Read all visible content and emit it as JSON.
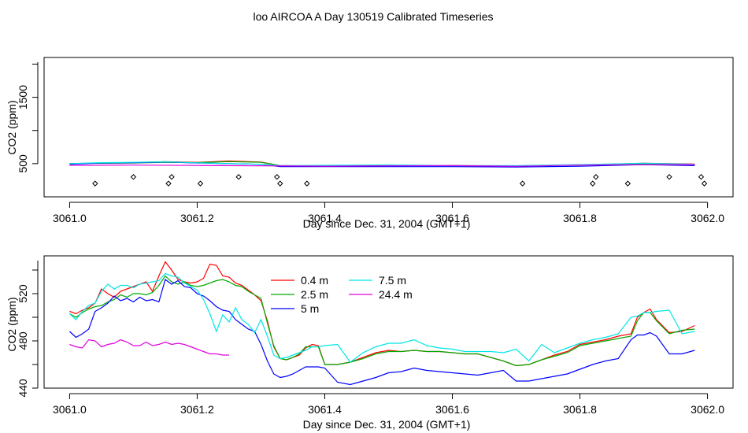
{
  "title": "loo AIRCOA A  Day 130519  Calibrated Timeseries",
  "chart_data": [
    {
      "type": "line",
      "xlabel": "Day since Dec. 31, 2004 (GMT+1)",
      "ylabel": "CO2 (ppm)",
      "xlim": [
        3060.96,
        3062.04
      ],
      "ylim": [
        0,
        2100
      ],
      "xticks": [
        3061.0,
        3061.2,
        3061.4,
        3061.6,
        3061.8,
        3062.0
      ],
      "xtick_labels": [
        "3061.0",
        "3061.2",
        "3061.4",
        "3061.6",
        "3061.8",
        "3062.0"
      ],
      "yticks": [
        500,
        1500
      ],
      "ytick_labels": [
        "500",
        "1500"
      ],
      "series": [
        {
          "color": "#ff0000",
          "x": [
            3061.0,
            3061.05,
            3061.1,
            3061.15,
            3061.2,
            3061.25,
            3061.3,
            3061.33,
            3061.4,
            3061.5,
            3061.6,
            3061.7,
            3061.8,
            3061.9,
            3061.98
          ],
          "y": [
            500,
            510,
            515,
            530,
            520,
            540,
            525,
            470,
            460,
            470,
            470,
            465,
            480,
            505,
            495
          ]
        },
        {
          "color": "#00aa00",
          "x": [
            3061.0,
            3061.05,
            3061.1,
            3061.15,
            3061.2,
            3061.25,
            3061.3,
            3061.33,
            3061.4,
            3061.5,
            3061.6,
            3061.7,
            3061.8,
            3061.9,
            3061.98
          ],
          "y": [
            500,
            505,
            510,
            520,
            515,
            530,
            520,
            470,
            460,
            470,
            470,
            465,
            480,
            500,
            490
          ]
        },
        {
          "color": "#0000ff",
          "x": [
            3061.0,
            3061.05,
            3061.1,
            3061.15,
            3061.2,
            3061.25,
            3061.3,
            3061.33,
            3061.4,
            3061.5,
            3061.6,
            3061.7,
            3061.8,
            3061.9,
            3061.98
          ],
          "y": [
            490,
            510,
            515,
            525,
            510,
            500,
            490,
            455,
            455,
            455,
            455,
            450,
            460,
            485,
            470
          ]
        },
        {
          "color": "#00e5e5",
          "x": [
            3061.0,
            3061.05,
            3061.1,
            3061.15,
            3061.2,
            3061.25,
            3061.3,
            3061.33,
            3061.4,
            3061.5,
            3061.6,
            3061.7,
            3061.8,
            3061.9,
            3061.98
          ],
          "y": [
            500,
            515,
            520,
            528,
            512,
            500,
            490,
            470,
            475,
            480,
            470,
            470,
            485,
            505,
            490
          ]
        },
        {
          "color": "#e000e0",
          "x": [
            3061.0,
            3061.1,
            3061.2,
            3061.3,
            3061.4,
            3061.5,
            3061.6,
            3061.7,
            3061.8,
            3061.9,
            3061.98
          ],
          "y": [
            475,
            478,
            472,
            468,
            462,
            468,
            470,
            460,
            478,
            485,
            485
          ]
        }
      ],
      "points": {
        "x": [
          3061.04,
          3061.1,
          3061.155,
          3061.16,
          3061.205,
          3061.265,
          3061.325,
          3061.33,
          3061.372,
          3061.71,
          3061.82,
          3061.825,
          3061.875,
          3061.94,
          3061.99,
          3061.995
        ],
        "y": [
          200,
          300,
          200,
          300,
          200,
          300,
          300,
          200,
          200,
          200,
          200,
          300,
          200,
          300,
          300,
          200
        ]
      }
    },
    {
      "type": "line",
      "xlabel": "Day since Dec. 31, 2004 (GMT+1)",
      "ylabel": "CO2 (ppm)",
      "xlim": [
        3060.96,
        3062.04
      ],
      "ylim": [
        440,
        552
      ],
      "xticks": [
        3061.0,
        3061.2,
        3061.4,
        3061.6,
        3061.8,
        3062.0
      ],
      "xtick_labels": [
        "3061.0",
        "3061.2",
        "3061.4",
        "3061.6",
        "3061.8",
        "3062.0"
      ],
      "yticks": [
        440,
        480,
        520
      ],
      "ytick_labels": [
        "440",
        "480",
        "520"
      ],
      "legend_position": "top-center",
      "series": [
        {
          "name": "0.4 m",
          "color": "#ff0000",
          "x": [
            3061.0,
            3061.01,
            3061.02,
            3061.03,
            3061.04,
            3061.05,
            3061.06,
            3061.07,
            3061.08,
            3061.09,
            3061.1,
            3061.11,
            3061.12,
            3061.13,
            3061.14,
            3061.15,
            3061.16,
            3061.17,
            3061.18,
            3061.19,
            3061.2,
            3061.21,
            3061.22,
            3061.23,
            3061.24,
            3061.25,
            3061.26,
            3061.27,
            3061.28,
            3061.29,
            3061.3,
            3061.31,
            3061.32,
            3061.33,
            3061.34,
            3061.35,
            3061.36,
            3061.37,
            3061.38,
            3061.39,
            3061.4,
            3061.42,
            3061.44,
            3061.46,
            3061.48,
            3061.5,
            3061.52,
            3061.54,
            3061.56,
            3061.58,
            3061.6,
            3061.62,
            3061.64,
            3061.66,
            3061.68,
            3061.7,
            3061.72,
            3061.74,
            3061.76,
            3061.78,
            3061.8,
            3061.82,
            3061.84,
            3061.86,
            3061.88,
            3061.89,
            3061.9,
            3061.91,
            3061.92,
            3061.94,
            3061.96,
            3061.98
          ],
          "y": [
            505,
            503,
            506,
            508,
            512,
            524,
            520,
            517,
            522,
            524,
            526,
            528,
            530,
            522,
            535,
            547,
            540,
            532,
            530,
            529,
            530,
            533,
            545,
            544,
            535,
            534,
            529,
            527,
            523,
            519,
            514,
            497,
            475,
            465,
            464,
            466,
            468,
            474,
            477,
            476,
            460,
            460,
            462,
            466,
            470,
            472,
            471,
            472,
            471,
            471,
            470,
            469,
            469,
            466,
            463,
            459,
            460,
            464,
            468,
            471,
            477,
            479,
            481,
            484,
            486,
            500,
            504,
            507,
            498,
            487,
            488,
            493
          ]
        },
        {
          "name": "2.5 m",
          "color": "#00aa00",
          "x": [
            3061.0,
            3061.01,
            3061.02,
            3061.03,
            3061.04,
            3061.05,
            3061.06,
            3061.07,
            3061.08,
            3061.09,
            3061.1,
            3061.11,
            3061.12,
            3061.13,
            3061.14,
            3061.15,
            3061.16,
            3061.17,
            3061.18,
            3061.19,
            3061.2,
            3061.21,
            3061.22,
            3061.23,
            3061.24,
            3061.25,
            3061.26,
            3061.27,
            3061.28,
            3061.29,
            3061.3,
            3061.31,
            3061.32,
            3061.33,
            3061.34,
            3061.35,
            3061.36,
            3061.37,
            3061.38,
            3061.39,
            3061.4,
            3061.42,
            3061.44,
            3061.46,
            3061.48,
            3061.5,
            3061.52,
            3061.54,
            3061.56,
            3061.58,
            3061.6,
            3061.62,
            3061.64,
            3061.66,
            3061.68,
            3061.7,
            3061.72,
            3061.74,
            3061.76,
            3061.78,
            3061.8,
            3061.82,
            3061.84,
            3061.86,
            3061.88,
            3061.89,
            3061.9,
            3061.91,
            3061.92,
            3061.94,
            3061.96,
            3061.98
          ],
          "y": [
            503,
            500,
            504,
            507,
            509,
            510,
            513,
            515,
            519,
            517,
            520,
            520,
            519,
            521,
            527,
            535,
            530,
            528,
            530,
            527,
            526,
            527,
            529,
            531,
            532,
            530,
            527,
            526,
            522,
            519,
            516,
            495,
            476,
            465,
            464,
            466,
            469,
            475,
            475,
            475,
            460,
            460,
            462,
            465,
            469,
            471,
            471,
            472,
            471,
            471,
            470,
            469,
            469,
            466,
            463,
            459,
            460,
            464,
            467,
            470,
            476,
            478,
            480,
            482,
            484,
            497,
            504,
            504,
            497,
            486,
            489,
            490
          ]
        },
        {
          "name": "5 m",
          "color": "#0000ff",
          "x": [
            3061.0,
            3061.01,
            3061.02,
            3061.03,
            3061.04,
            3061.05,
            3061.06,
            3061.07,
            3061.08,
            3061.09,
            3061.1,
            3061.11,
            3061.12,
            3061.13,
            3061.14,
            3061.15,
            3061.16,
            3061.17,
            3061.18,
            3061.19,
            3061.2,
            3061.21,
            3061.22,
            3061.23,
            3061.24,
            3061.25,
            3061.26,
            3061.27,
            3061.28,
            3061.29,
            3061.3,
            3061.31,
            3061.32,
            3061.33,
            3061.34,
            3061.35,
            3061.36,
            3061.37,
            3061.38,
            3061.39,
            3061.4,
            3061.42,
            3061.44,
            3061.46,
            3061.48,
            3061.5,
            3061.52,
            3061.54,
            3061.56,
            3061.58,
            3061.6,
            3061.62,
            3061.64,
            3061.66,
            3061.68,
            3061.7,
            3061.72,
            3061.74,
            3061.76,
            3061.78,
            3061.8,
            3061.82,
            3061.84,
            3061.86,
            3061.88,
            3061.89,
            3061.9,
            3061.91,
            3061.92,
            3061.94,
            3061.96,
            3061.98
          ],
          "y": [
            488,
            483,
            486,
            490,
            505,
            508,
            512,
            518,
            514,
            516,
            513,
            517,
            514,
            515,
            513,
            532,
            528,
            531,
            526,
            525,
            520,
            518,
            514,
            509,
            506,
            505,
            498,
            494,
            490,
            488,
            477,
            463,
            452,
            449,
            450,
            452,
            455,
            458,
            458,
            458,
            457,
            445,
            443,
            446,
            449,
            453,
            454,
            457,
            455,
            454,
            453,
            452,
            451,
            453,
            455,
            446,
            446,
            448,
            450,
            452,
            456,
            460,
            463,
            465,
            481,
            485,
            485,
            487,
            484,
            469,
            469,
            472
          ]
        },
        {
          "name": "7.5 m",
          "color": "#00e5e5",
          "x": [
            3061.0,
            3061.01,
            3061.02,
            3061.03,
            3061.04,
            3061.05,
            3061.06,
            3061.07,
            3061.08,
            3061.09,
            3061.1,
            3061.11,
            3061.12,
            3061.13,
            3061.14,
            3061.15,
            3061.16,
            3061.17,
            3061.18,
            3061.19,
            3061.2,
            3061.21,
            3061.22,
            3061.23,
            3061.24,
            3061.25,
            3061.26,
            3061.27,
            3061.28,
            3061.29,
            3061.3,
            3061.31,
            3061.32,
            3061.33,
            3061.34,
            3061.35,
            3061.36,
            3061.37,
            3061.38,
            3061.39,
            3061.4,
            3061.42,
            3061.44,
            3061.46,
            3061.48,
            3061.5,
            3061.52,
            3061.54,
            3061.56,
            3061.58,
            3061.6,
            3061.62,
            3061.64,
            3061.66,
            3061.68,
            3061.7,
            3061.72,
            3061.74,
            3061.76,
            3061.78,
            3061.8,
            3061.82,
            3061.84,
            3061.86,
            3061.88,
            3061.89,
            3061.9,
            3061.91,
            3061.92,
            3061.94,
            3061.96,
            3061.98
          ],
          "y": [
            503,
            498,
            505,
            510,
            512,
            522,
            528,
            524,
            527,
            527,
            525,
            528,
            529,
            530,
            531,
            537,
            535,
            534,
            529,
            526,
            523,
            515,
            503,
            488,
            502,
            496,
            508,
            498,
            494,
            487,
            498,
            484,
            468,
            465,
            466,
            468,
            470,
            472,
            475,
            475,
            476,
            477,
            462,
            470,
            475,
            478,
            478,
            481,
            476,
            474,
            473,
            471,
            471,
            471,
            470,
            473,
            463,
            477,
            470,
            474,
            478,
            481,
            483,
            486,
            500,
            501,
            504,
            504,
            505,
            506,
            486,
            488
          ]
        },
        {
          "name": "24.4 m",
          "color": "#e000e0",
          "x": [
            3061.0,
            3061.01,
            3061.02,
            3061.03,
            3061.04,
            3061.05,
            3061.06,
            3061.07,
            3061.08,
            3061.09,
            3061.1,
            3061.11,
            3061.12,
            3061.13,
            3061.14,
            3061.15,
            3061.16,
            3061.17,
            3061.18,
            3061.19,
            3061.2,
            3061.21,
            3061.22,
            3061.23,
            3061.24,
            3061.25
          ],
          "y": [
            477,
            475,
            474,
            481,
            480,
            475,
            477,
            478,
            481,
            479,
            476,
            476,
            479,
            476,
            477,
            479,
            477,
            478,
            477,
            475,
            473,
            471,
            469,
            469,
            468,
            468
          ]
        }
      ]
    }
  ]
}
